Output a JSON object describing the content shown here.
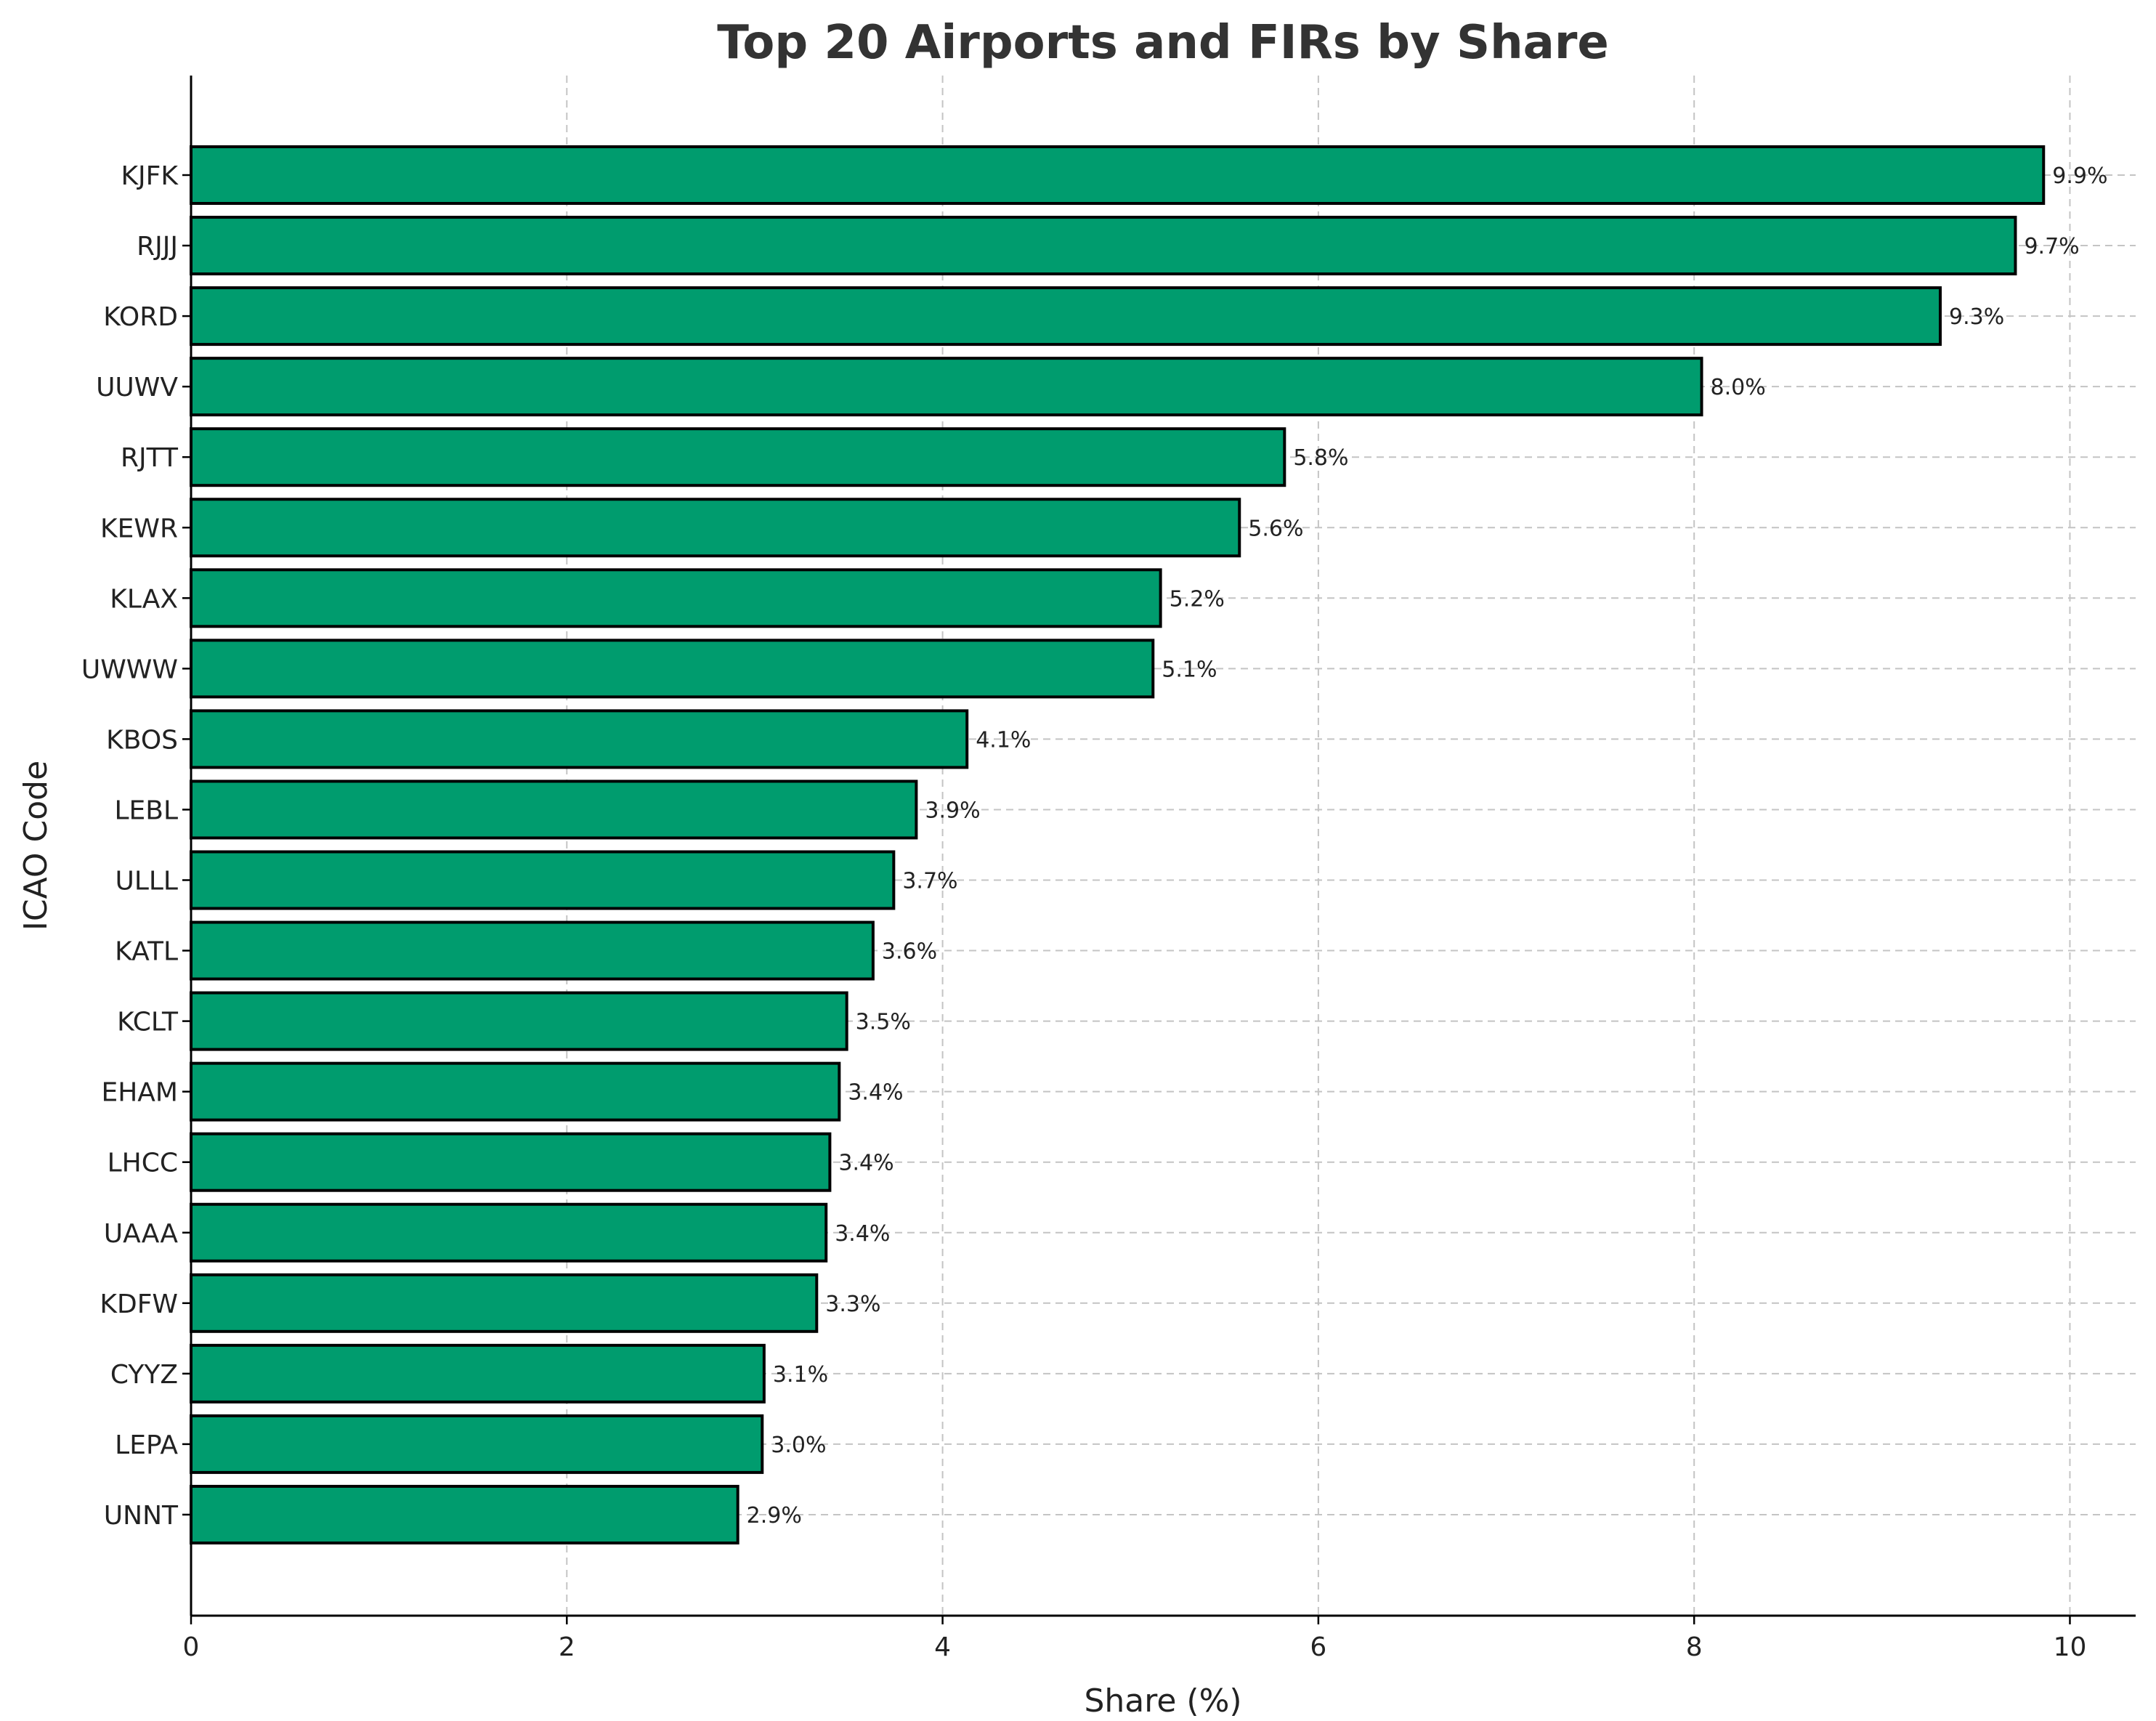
{
  "colors": {
    "bar_fill": "#009c6e",
    "bar_edge": "#000000"
  },
  "chart_data": {
    "type": "bar",
    "orientation": "horizontal",
    "title": "Top 20 Airports and FIRs by Share",
    "xlabel": "Share (%)",
    "ylabel": "ICAO Code",
    "xlim": [
      0,
      10.35
    ],
    "xticks": [
      0,
      2,
      4,
      6,
      8,
      10
    ],
    "grid": true,
    "categories": [
      "KJFK",
      "RJJJ",
      "KORD",
      "UUWV",
      "RJTT",
      "KEWR",
      "KLAX",
      "UWWW",
      "KBOS",
      "LEBL",
      "ULLL",
      "KATL",
      "KCLT",
      "EHAM",
      "LHCC",
      "UAAA",
      "KDFW",
      "CYYZ",
      "LEPA",
      "UNNT"
    ],
    "values": [
      9.86,
      9.71,
      9.31,
      8.04,
      5.82,
      5.58,
      5.16,
      5.12,
      4.13,
      3.86,
      3.74,
      3.63,
      3.49,
      3.45,
      3.4,
      3.38,
      3.33,
      3.05,
      3.04,
      2.91
    ],
    "data_labels": [
      "9.9%",
      "9.7%",
      "9.3%",
      "8.0%",
      "5.8%",
      "5.6%",
      "5.2%",
      "5.1%",
      "4.1%",
      "3.9%",
      "3.7%",
      "3.6%",
      "3.5%",
      "3.4%",
      "3.4%",
      "3.4%",
      "3.3%",
      "3.1%",
      "3.0%",
      "2.9%"
    ]
  }
}
